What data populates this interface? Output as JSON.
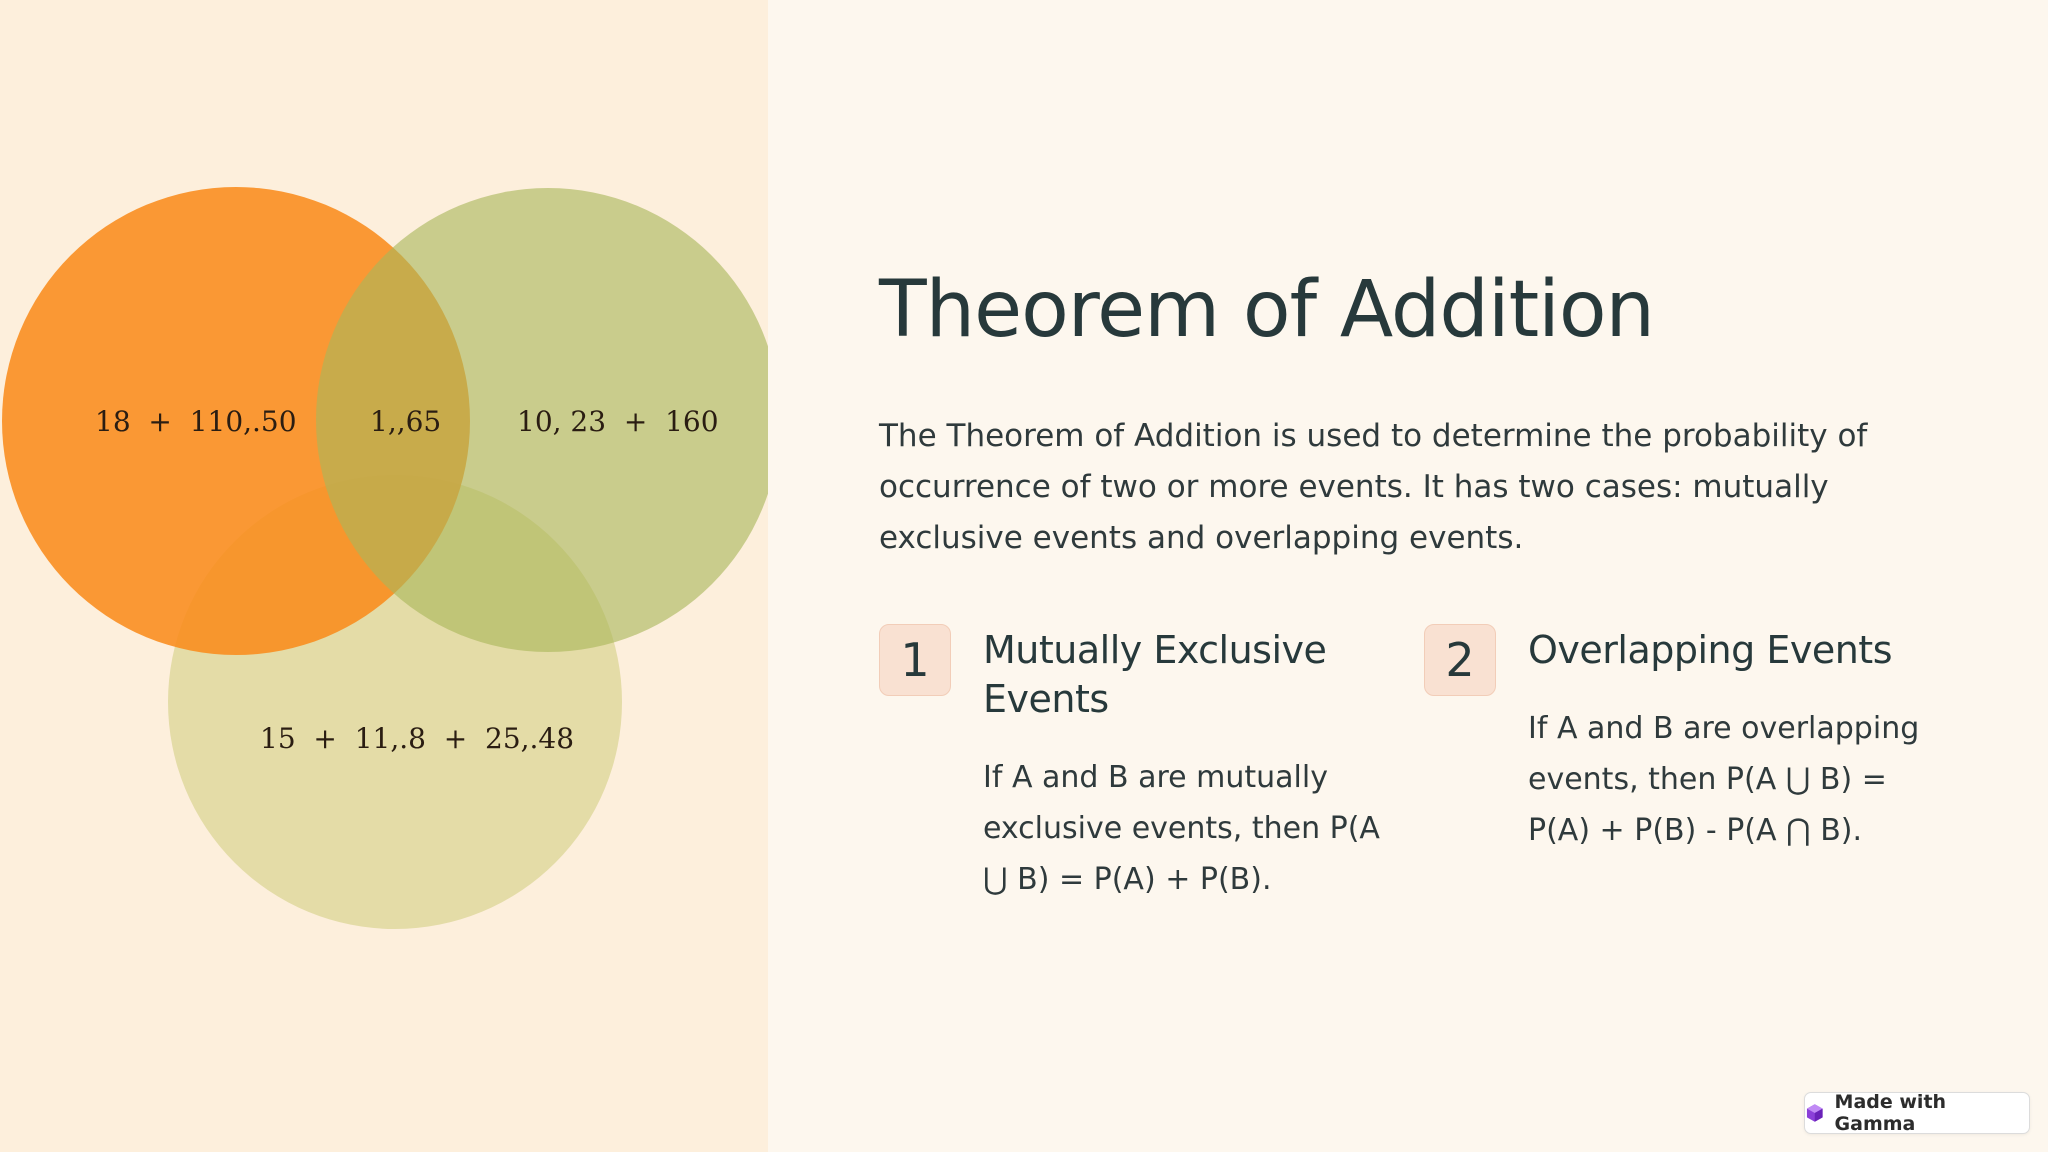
{
  "venn": {
    "labels": {
      "a_only": "18  +  110,.50",
      "a_and_b": "1,,65",
      "b_only": "10, 23  +  160",
      "c_region": "15  +  11,.8  +  25,.48"
    },
    "colors": {
      "circle_a": "#f98c1c",
      "circle_b": "#a9b75a",
      "circle_c": "#cfcd83",
      "panel_bg": "#fdefdc"
    }
  },
  "slide": {
    "title": "Theorem of Addition",
    "intro": "The Theorem of Addition is used to determine the probability of occurrence of two or more events. It has two cases: mutually exclusive events and overlapping events.",
    "cases": [
      {
        "number": "1",
        "title": "Mutually Exclusive Events",
        "body": "If A and B are mutually exclusive events, then P(A ⋃ B) = P(A) + P(B)."
      },
      {
        "number": "2",
        "title": "Overlapping Events",
        "body": "If A and B are overlapping events, then P(A ⋃ B) = P(A) + P(B) - P(A ⋂ B)."
      }
    ]
  },
  "badge": {
    "label": "Made with Gamma",
    "icon": "gamma-logo-icon",
    "accent": "#8b3fd9"
  }
}
